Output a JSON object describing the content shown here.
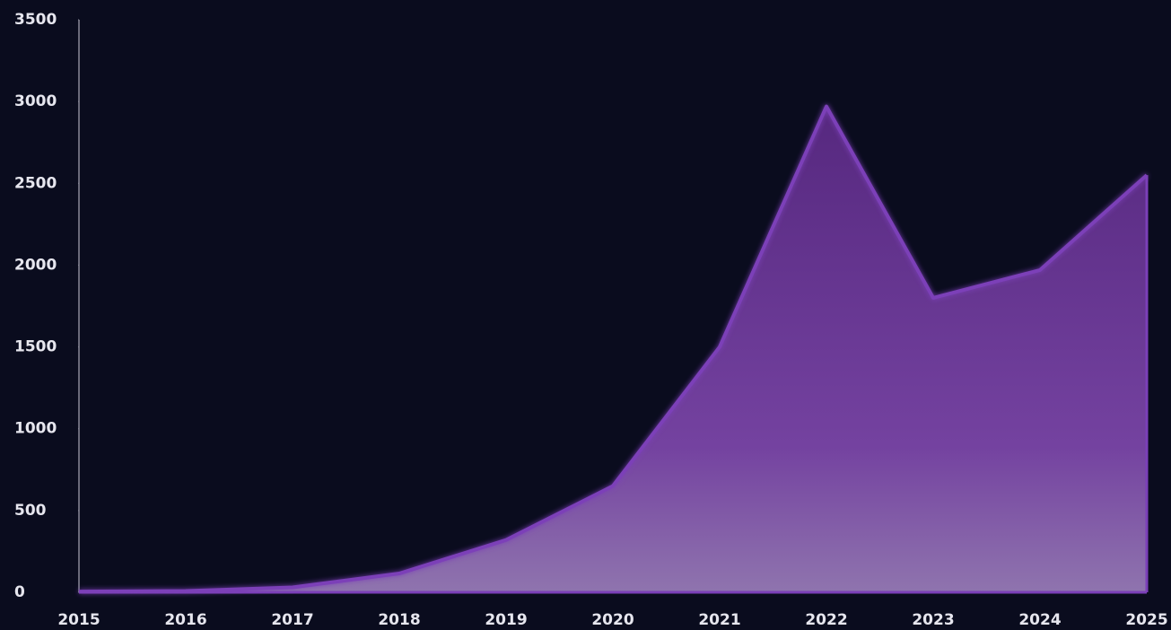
{
  "chart_data": {
    "type": "area",
    "categories": [
      "2015",
      "2016",
      "2017",
      "2018",
      "2019",
      "2020",
      "2021",
      "2022",
      "2023",
      "2024",
      "2025"
    ],
    "values": [
      5,
      8,
      30,
      115,
      320,
      650,
      1500,
      2970,
      1800,
      1970,
      2550
    ],
    "color": "#7b3fb8",
    "ylim": [
      0,
      3500
    ],
    "yticks": [
      0,
      500,
      1000,
      1500,
      2000,
      2500,
      3000,
      3500
    ]
  }
}
